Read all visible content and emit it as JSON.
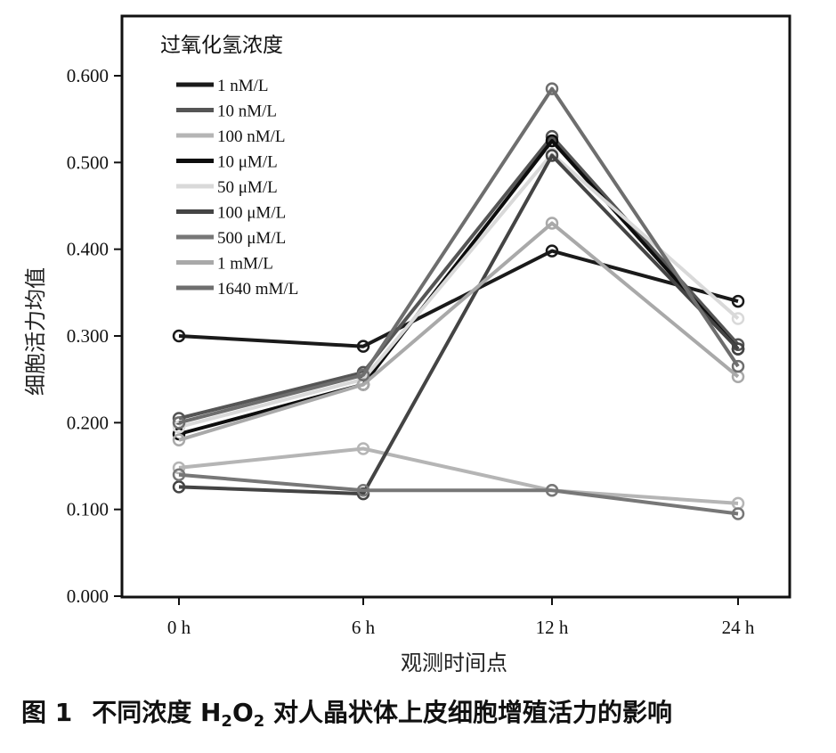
{
  "chart_data": {
    "type": "line",
    "title": "",
    "xlabel": "观测时间点",
    "ylabel": "细胞活力均值",
    "categories": [
      "0 h",
      "6 h",
      "12 h",
      "24 h"
    ],
    "ylim": [
      0,
      0.6
    ],
    "yticks": [
      "0.000",
      "0.100",
      "0.200",
      "0.300",
      "0.400",
      "0.500",
      "0.600"
    ],
    "grid": false,
    "legend_title": "过氧化氢浓度",
    "legend_position": "top-left",
    "series": [
      {
        "name": "1 nM/L",
        "color": "#1a1a1a",
        "values": [
          0.3,
          0.288,
          0.398,
          0.34
        ]
      },
      {
        "name": "10 nM/L",
        "color": "#555555",
        "values": [
          0.205,
          0.258,
          0.53,
          0.29
        ]
      },
      {
        "name": "100 nM/L",
        "color": "#b5b5b5",
        "values": [
          0.148,
          0.17,
          0.122,
          0.107
        ]
      },
      {
        "name": "10 μM/L",
        "color": "#0d0d0d",
        "values": [
          0.187,
          0.244,
          0.525,
          0.285
        ]
      },
      {
        "name": "50 μM/L",
        "color": "#d9d9d9",
        "values": [
          0.195,
          0.25,
          0.51,
          0.32
        ]
      },
      {
        "name": "100 μM/L",
        "color": "#444444",
        "values": [
          0.126,
          0.118,
          0.508,
          0.285
        ]
      },
      {
        "name": "500 μM/L",
        "color": "#777777",
        "values": [
          0.14,
          0.122,
          0.122,
          0.095
        ]
      },
      {
        "name": "1 mM/L",
        "color": "#a9a9a9",
        "values": [
          0.18,
          0.244,
          0.43,
          0.253
        ]
      },
      {
        "name": "1640 mM/L",
        "color": "#6e6e6e",
        "values": [
          0.2,
          0.255,
          0.585,
          0.265
        ]
      }
    ]
  },
  "caption": {
    "label": "图 1",
    "pre": "不同浓度 H",
    "sub1": "2",
    "mid": "O",
    "sub2": "2",
    "post": " 对人晶状体上皮细胞增殖活力的影响"
  }
}
